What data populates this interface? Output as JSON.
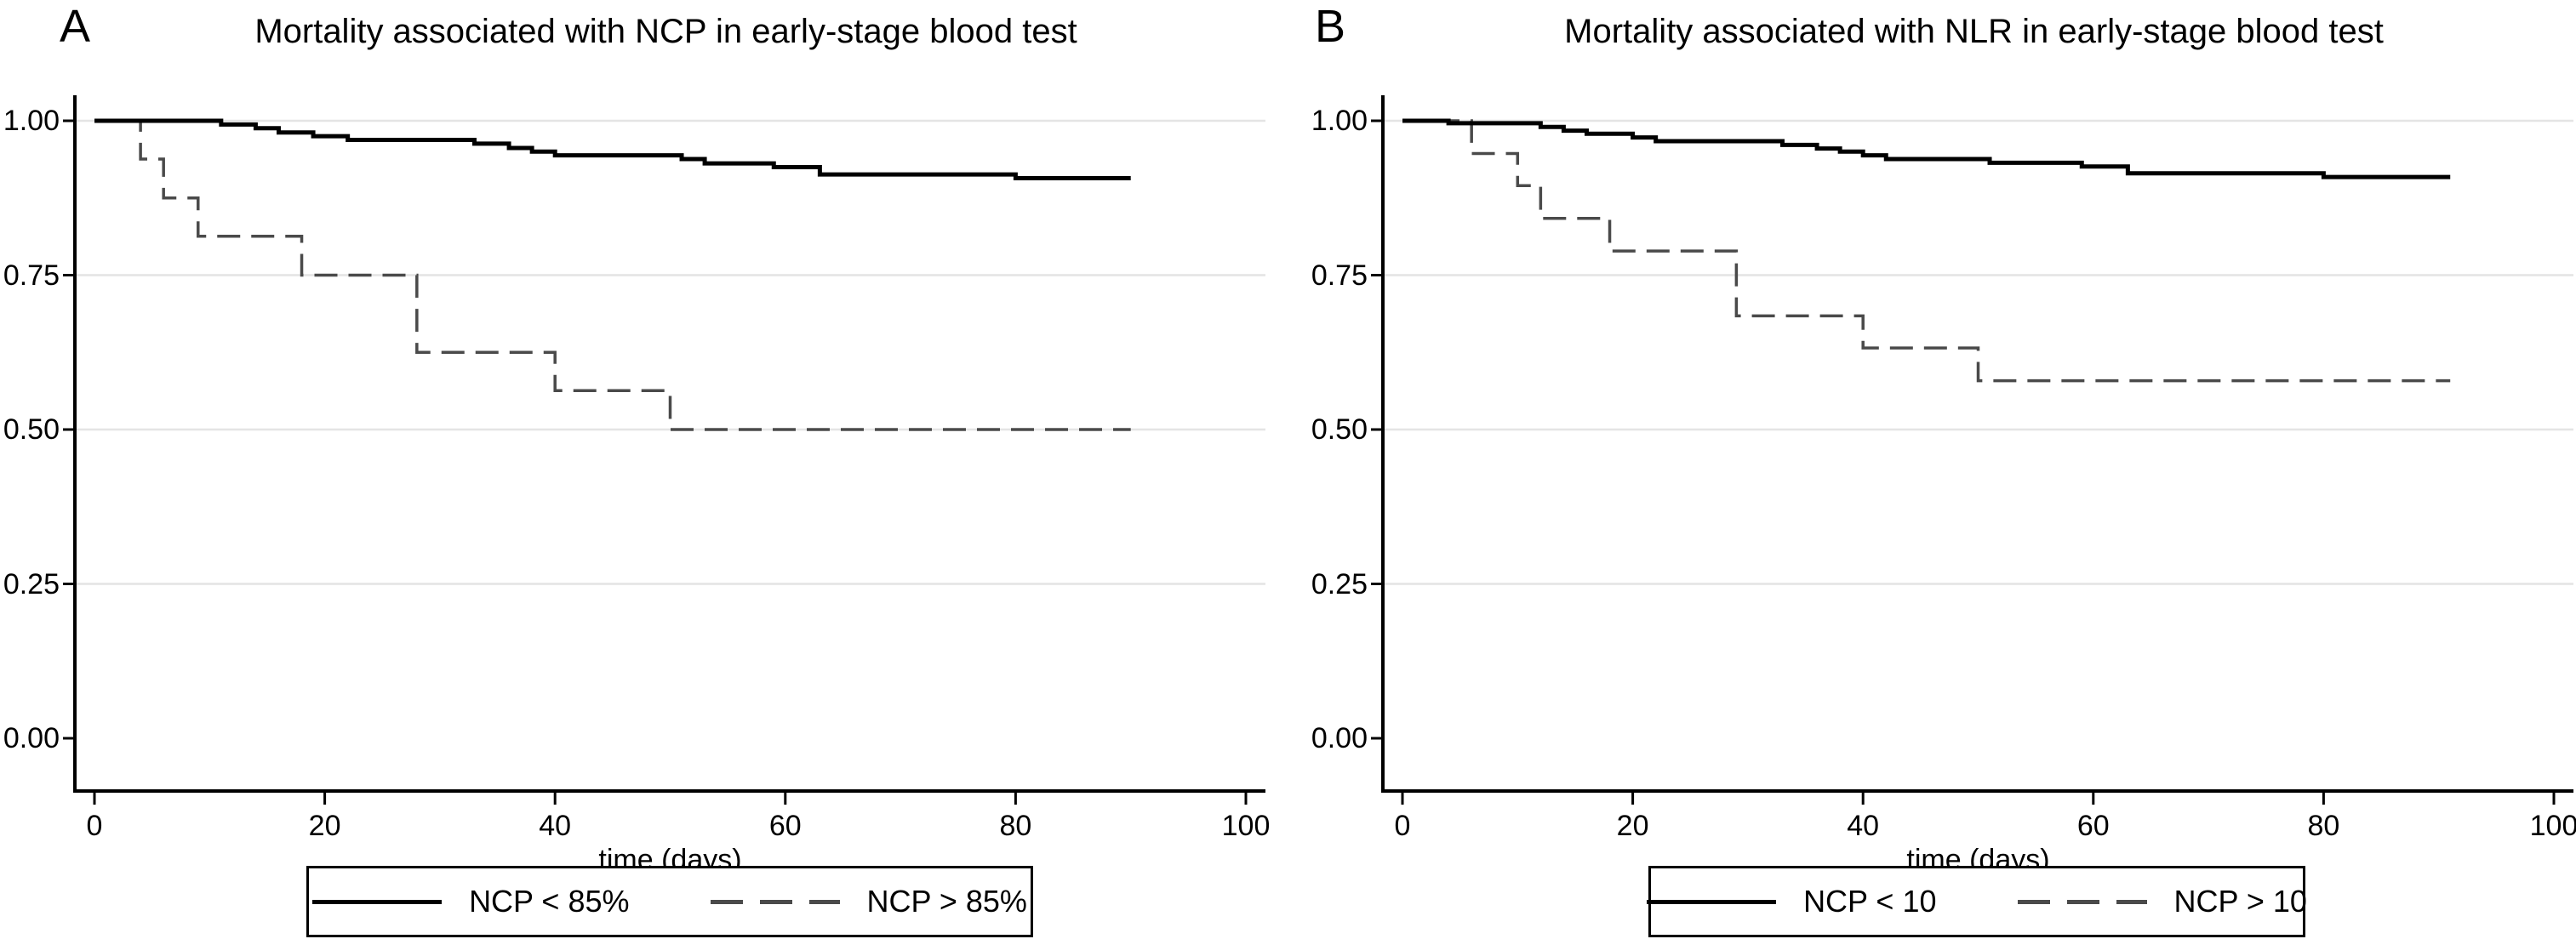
{
  "figure_background": "#ffffff",
  "chart_data": [
    {
      "type": "line",
      "subtype": "kaplan_meier_step",
      "panel_label": "A",
      "title": "Mortality associated with NCP in early-stage blood test",
      "xlabel": "time (days)",
      "xlim": [
        0,
        100
      ],
      "ylim": [
        0.0,
        1.0
      ],
      "xtick_values": [
        0,
        20,
        40,
        60,
        80,
        100
      ],
      "xtick_labels": [
        "0",
        "20",
        "40",
        "60",
        "80",
        "100"
      ],
      "ytick_values": [
        1.0,
        0.75,
        0.5,
        0.25,
        0.0
      ],
      "ytick_labels": [
        "1.00",
        "0.75",
        "0.50",
        "0.25",
        "0.00"
      ],
      "grid": true,
      "grid_values": [
        1.0,
        0.75,
        0.5,
        0.25
      ],
      "grid_color": "#e4e4e4",
      "legend_position": "bottom",
      "series": [
        {
          "name": "NCP < 85%",
          "line": "solid",
          "color": "#000000",
          "steps": [
            [
              0,
              1.0
            ],
            [
              11,
              0.994
            ],
            [
              14,
              0.988
            ],
            [
              16,
              0.981
            ],
            [
              19,
              0.975
            ],
            [
              22,
              0.969
            ],
            [
              33,
              0.963
            ],
            [
              36,
              0.956
            ],
            [
              38,
              0.95
            ],
            [
              40,
              0.944
            ],
            [
              51,
              0.938
            ],
            [
              53,
              0.931
            ],
            [
              59,
              0.925
            ],
            [
              63,
              0.913
            ],
            [
              80,
              0.907
            ]
          ],
          "end_x": 90
        },
        {
          "name": "NCP > 85%",
          "line": "dashed",
          "color": "#4a4a4a",
          "steps": [
            [
              0,
              1.0
            ],
            [
              4,
              0.938
            ],
            [
              6,
              0.875
            ],
            [
              9,
              0.813
            ],
            [
              18,
              0.75
            ],
            [
              28,
              0.625
            ],
            [
              40,
              0.563
            ],
            [
              50,
              0.5
            ]
          ],
          "end_x": 90
        }
      ]
    },
    {
      "type": "line",
      "subtype": "kaplan_meier_step",
      "panel_label": "B",
      "title": "Mortality associated with NLR in early-stage blood test",
      "xlabel": "time (days)",
      "xlim": [
        0,
        100
      ],
      "ylim": [
        0.0,
        1.0
      ],
      "xtick_values": [
        0,
        20,
        40,
        60,
        80,
        100
      ],
      "xtick_labels": [
        "0",
        "20",
        "40",
        "60",
        "80",
        "100"
      ],
      "ytick_values": [
        1.0,
        0.75,
        0.5,
        0.25,
        0.0
      ],
      "ytick_labels": [
        "1.00",
        "0.75",
        "0.50",
        "0.25",
        "0.00"
      ],
      "grid": true,
      "grid_values": [
        1.0,
        0.75,
        0.5,
        0.25
      ],
      "grid_color": "#e4e4e4",
      "legend_position": "bottom",
      "series": [
        {
          "name": "NCP < 10",
          "line": "solid",
          "color": "#000000",
          "steps": [
            [
              0,
              1.0
            ],
            [
              4,
              0.996
            ],
            [
              12,
              0.99
            ],
            [
              14,
              0.984
            ],
            [
              16,
              0.979
            ],
            [
              20,
              0.973
            ],
            [
              22,
              0.967
            ],
            [
              33,
              0.961
            ],
            [
              36,
              0.955
            ],
            [
              38,
              0.95
            ],
            [
              40,
              0.944
            ],
            [
              42,
              0.938
            ],
            [
              51,
              0.932
            ],
            [
              59,
              0.926
            ],
            [
              63,
              0.915
            ],
            [
              80,
              0.909
            ]
          ],
          "end_x": 91
        },
        {
          "name": "NCP > 10",
          "line": "dashed",
          "color": "#4a4a4a",
          "steps": [
            [
              0,
              1.0
            ],
            [
              6,
              0.947
            ],
            [
              10,
              0.895
            ],
            [
              12,
              0.842
            ],
            [
              18,
              0.789
            ],
            [
              29,
              0.684
            ],
            [
              40,
              0.632
            ],
            [
              50,
              0.579
            ]
          ],
          "end_x": 91
        }
      ]
    }
  ]
}
